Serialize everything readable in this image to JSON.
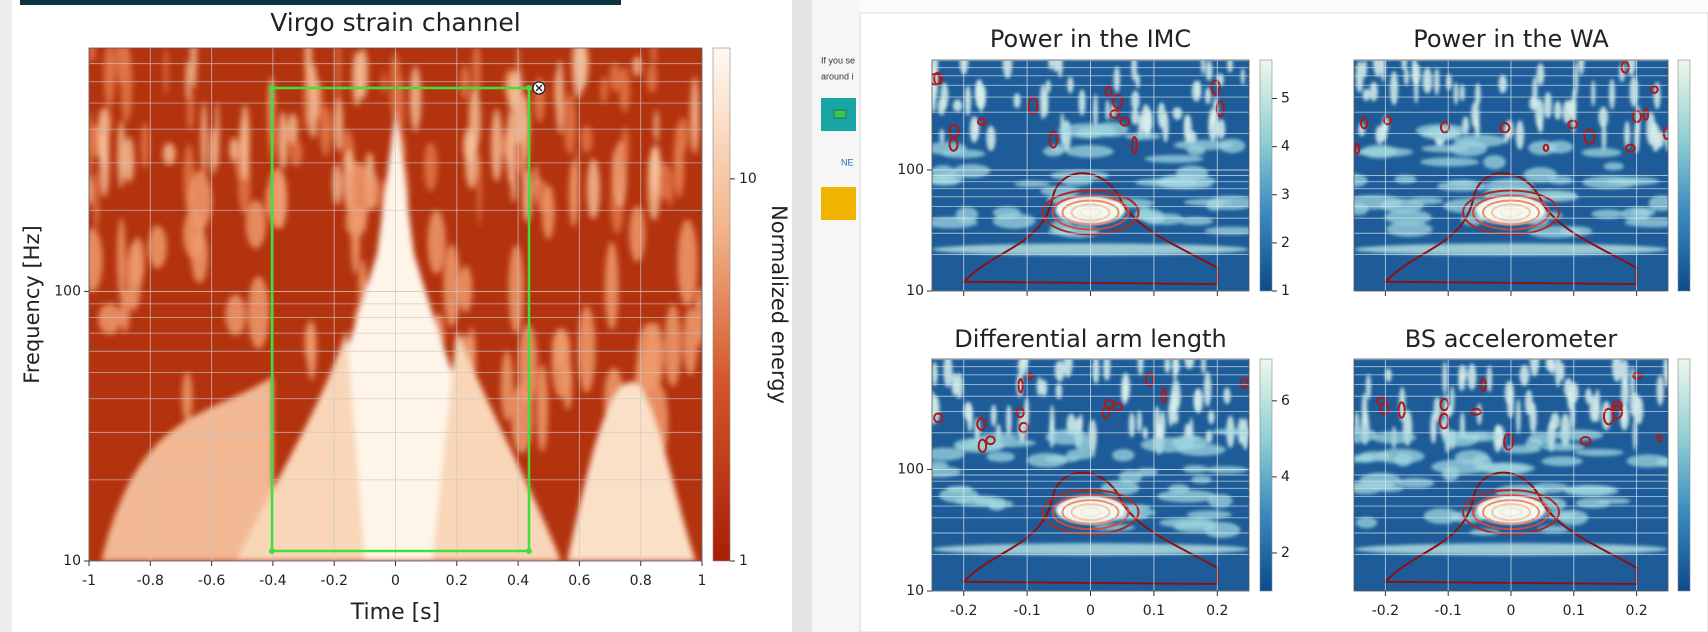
{
  "chart_data": [
    {
      "type": "spectrogram",
      "title": "Virgo strain channel",
      "xlabel": "Time [s]",
      "ylabel": "Frequency [Hz]",
      "xlim": [
        -1,
        1
      ],
      "xticks": [
        -1,
        -0.8,
        -0.6,
        -0.4,
        -0.2,
        0,
        0.2,
        0.4,
        0.6,
        0.8,
        1
      ],
      "ylim": [
        10,
        800
      ],
      "yticks": [
        10,
        100
      ],
      "ylog": true,
      "grid": true,
      "colormap": "heat",
      "colorbar": {
        "label": "Normalized energy",
        "lim": [
          1,
          22
        ],
        "ticks": [
          1,
          10
        ],
        "log": true
      }
    },
    {
      "type": "spectrogram",
      "title": "Power in the IMC",
      "xlim": [
        -0.25,
        0.25
      ],
      "xticks": [
        -0.2,
        -0.1,
        0,
        0.1,
        0.2
      ],
      "xticklabels": false,
      "ylim": [
        10,
        810
      ],
      "yticks": [
        10,
        100
      ],
      "ylog": true,
      "grid": true,
      "colormap": "blue",
      "colorbar": {
        "lim": [
          1,
          5.8
        ],
        "ticks": [
          1,
          2,
          3,
          4,
          5
        ],
        "log": false
      }
    },
    {
      "type": "spectrogram",
      "title": "Power in the WA",
      "xlim": [
        -0.25,
        0.25
      ],
      "xticks": [
        -0.2,
        -0.1,
        0,
        0.1,
        0.2
      ],
      "xticklabels": false,
      "ylim": [
        10,
        810
      ],
      "ylog": true,
      "grid": true,
      "colormap": "blue",
      "colorbar": {
        "lim": [
          1,
          5.8
        ],
        "log": false
      }
    },
    {
      "type": "spectrogram",
      "title": "Differential arm length",
      "xlim": [
        -0.25,
        0.25
      ],
      "xticks": [
        -0.2,
        -0.1,
        0,
        0.1,
        0.2
      ],
      "ylim": [
        10,
        810
      ],
      "yticks": [
        10,
        100
      ],
      "ylog": true,
      "grid": true,
      "colormap": "blue",
      "colorbar": {
        "lim": [
          1,
          7.1
        ],
        "ticks": [
          2,
          4,
          6
        ],
        "log": false
      }
    },
    {
      "type": "spectrogram",
      "title": "BS accelerometer",
      "xlim": [
        -0.25,
        0.25
      ],
      "xticks": [
        -0.2,
        -0.1,
        0,
        0.1,
        0.2
      ],
      "ylim": [
        10,
        810
      ],
      "ylog": true,
      "grid": true,
      "colormap": "blue",
      "colorbar": {
        "lim": [
          1,
          6
        ],
        "log": false
      }
    }
  ],
  "sidebar": {
    "lines": [
      "If you se",
      "around i"
    ],
    "link": "NE"
  }
}
